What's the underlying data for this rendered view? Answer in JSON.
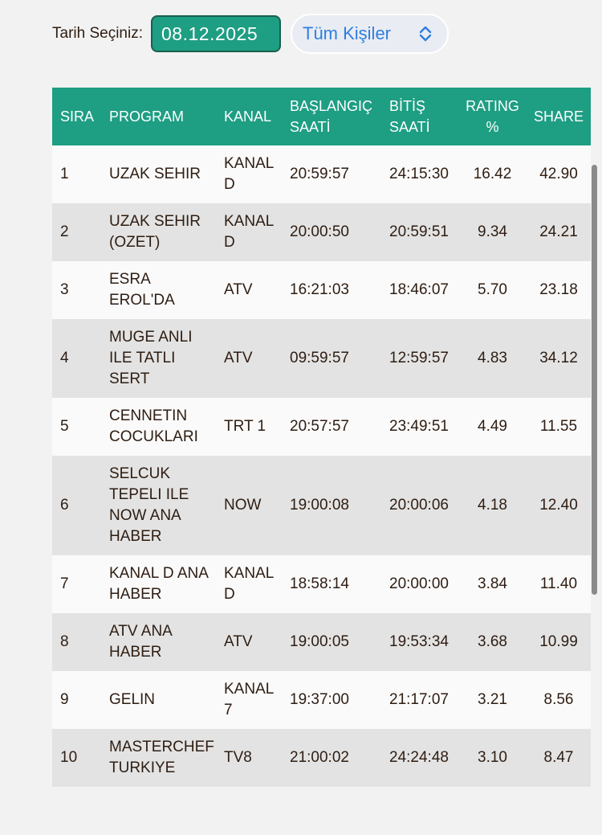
{
  "filter": {
    "date_label": "Tarih Seçiniz:",
    "date_value": "08.12.2025",
    "person_select": "Tüm Kişiler"
  },
  "table": {
    "headers": [
      "SIRA",
      "PROGRAM",
      "KANAL",
      "BAŞLANGIÇ SAATİ",
      "BİTİŞ SAATİ",
      "RATING %",
      "SHARE"
    ],
    "rows": [
      {
        "rank": "1",
        "program": "UZAK SEHIR",
        "channel": "KANAL D",
        "start": "20:59:57",
        "end": "24:15:30",
        "rating": "16.42",
        "share": "42.90"
      },
      {
        "rank": "2",
        "program": "UZAK SEHIR (OZET)",
        "channel": "KANAL D",
        "start": "20:00:50",
        "end": "20:59:51",
        "rating": "9.34",
        "share": "24.21"
      },
      {
        "rank": "3",
        "program": "ESRA EROL'DA",
        "channel": "ATV",
        "start": "16:21:03",
        "end": "18:46:07",
        "rating": "5.70",
        "share": "23.18"
      },
      {
        "rank": "4",
        "program": "MUGE ANLI ILE TATLI SERT",
        "channel": "ATV",
        "start": "09:59:57",
        "end": "12:59:57",
        "rating": "4.83",
        "share": "34.12"
      },
      {
        "rank": "5",
        "program": "CENNETIN COCUKLARI",
        "channel": "TRT 1",
        "start": "20:57:57",
        "end": "23:49:51",
        "rating": "4.49",
        "share": "11.55"
      },
      {
        "rank": "6",
        "program": "SELCUK TEPELI ILE NOW ANA HABER",
        "channel": "NOW",
        "start": "19:00:08",
        "end": "20:00:06",
        "rating": "4.18",
        "share": "12.40"
      },
      {
        "rank": "7",
        "program": "KANAL D ANA HABER",
        "channel": "KANAL D",
        "start": "18:58:14",
        "end": "20:00:00",
        "rating": "3.84",
        "share": "11.40"
      },
      {
        "rank": "8",
        "program": "ATV ANA HABER",
        "channel": "ATV",
        "start": "19:00:05",
        "end": "19:53:34",
        "rating": "3.68",
        "share": "10.99"
      },
      {
        "rank": "9",
        "program": "GELIN",
        "channel": "KANAL 7",
        "start": "19:37:00",
        "end": "21:17:07",
        "rating": "3.21",
        "share": "8.56"
      },
      {
        "rank": "10",
        "program": "MASTERCHEF TURKIYE",
        "channel": "TV8",
        "start": "21:00:02",
        "end": "24:24:48",
        "rating": "3.10",
        "share": "8.47"
      }
    ]
  },
  "icons": {
    "select_chevron": "chevron-up-down-icon"
  },
  "colors": {
    "accent": "#1e9e83",
    "select_text": "#2f7fe0",
    "row_alt": "#e3e3e3"
  }
}
